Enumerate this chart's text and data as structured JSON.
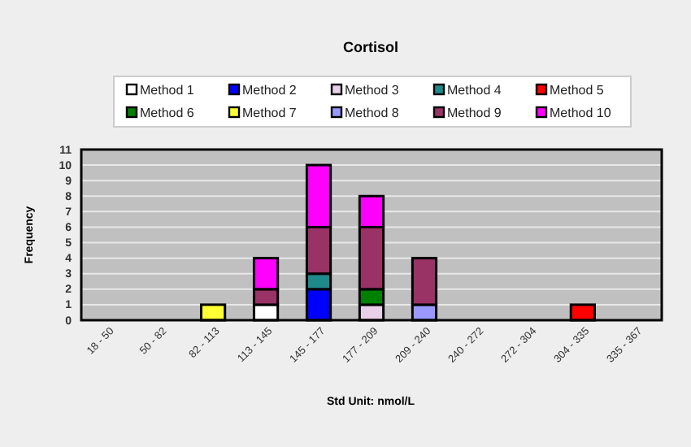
{
  "chart_data": {
    "type": "bar",
    "title": "Cortisol",
    "xlabel": "Std Unit: nmol/L",
    "ylabel": "Frequency",
    "categories": [
      "18 - 50",
      "50 - 82",
      "82 - 113",
      "113 - 145",
      "145 - 177",
      "177 - 209",
      "209 - 240",
      "240 - 272",
      "272 - 304",
      "304 - 335",
      "335 - 367"
    ],
    "stacked": true,
    "ylim": [
      0,
      11
    ],
    "yticks": [
      0,
      1,
      2,
      3,
      4,
      5,
      6,
      7,
      8,
      9,
      10,
      11
    ],
    "grid": "y",
    "legend": "top",
    "series": [
      {
        "name": "Method 1",
        "color": "#ffffff",
        "values": [
          null,
          null,
          null,
          1,
          null,
          null,
          null,
          null,
          null,
          null,
          null
        ]
      },
      {
        "name": "Method 2",
        "color": "#0000ff",
        "values": [
          null,
          null,
          null,
          null,
          2,
          null,
          null,
          null,
          null,
          null,
          null
        ]
      },
      {
        "name": "Method 3",
        "color": "#e8d0e8",
        "values": [
          null,
          null,
          null,
          null,
          null,
          1,
          null,
          null,
          null,
          null,
          null
        ]
      },
      {
        "name": "Method 4",
        "color": "#1f8a8a",
        "values": [
          null,
          null,
          null,
          null,
          1,
          null,
          null,
          null,
          null,
          null,
          null
        ]
      },
      {
        "name": "Method 5",
        "color": "#ff0000",
        "values": [
          null,
          null,
          null,
          null,
          null,
          null,
          null,
          null,
          null,
          1,
          null
        ]
      },
      {
        "name": "Method 6",
        "color": "#008000",
        "values": [
          null,
          null,
          null,
          null,
          null,
          1,
          null,
          null,
          null,
          null,
          null
        ]
      },
      {
        "name": "Method 7",
        "color": "#ffff33",
        "values": [
          null,
          null,
          1,
          null,
          null,
          null,
          null,
          null,
          null,
          null,
          null
        ]
      },
      {
        "name": "Method 8",
        "color": "#9999ff",
        "values": [
          null,
          null,
          null,
          null,
          null,
          null,
          1,
          null,
          null,
          null,
          null
        ]
      },
      {
        "name": "Method 9",
        "color": "#993366",
        "values": [
          null,
          null,
          null,
          1,
          3,
          4,
          3,
          null,
          null,
          null,
          null
        ]
      },
      {
        "name": "Method 10",
        "color": "#ff00ff",
        "values": [
          null,
          null,
          null,
          2,
          4,
          2,
          null,
          null,
          null,
          null,
          null
        ]
      }
    ]
  }
}
